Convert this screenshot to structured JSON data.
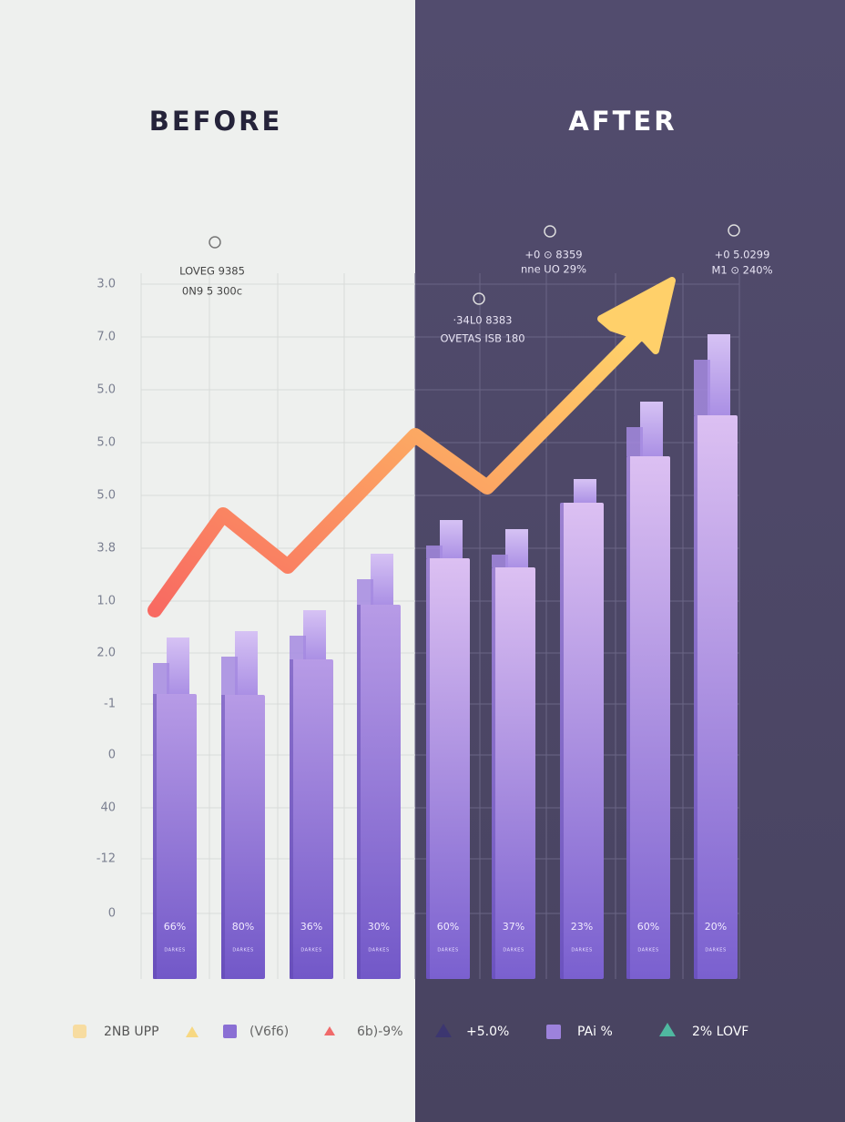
{
  "before_title": "BEFORE",
  "after_title": "AFTER",
  "axis_labels": [
    "3.0",
    "7.0",
    "5.0",
    "5.0",
    "5.0",
    "3.8",
    "1.0",
    "2.0",
    "-1",
    "0",
    "40",
    "-12",
    "0"
  ],
  "annotations": [
    {
      "lines": [
        "LOVEG 9385",
        "0N9 5 300c"
      ]
    },
    {
      "lines": [
        "·34L0 8383",
        "OVETAS ISB 180"
      ]
    },
    {
      "lines": [
        "+0 ⊙ 8359",
        "nne UO 29%"
      ]
    },
    {
      "lines": [
        "+0 5.0299",
        "M1 ⊙ 240%"
      ]
    }
  ],
  "bar_labels": [
    "66%",
    "80%",
    "36%",
    "30%",
    "60%",
    "37%",
    "23%",
    "60%",
    "20%"
  ],
  "bar_sublabels": [
    "DARKES",
    "DARKES",
    "DARKES",
    "DARKES",
    "DARKES",
    "DARKES",
    "DARKES",
    "DARKES",
    "DARKES"
  ],
  "legend": [
    "2NB UPP",
    "(V6f6)",
    "6b)-9%",
    "+5.0%",
    "PAi %",
    "2% LOVF"
  ]
}
